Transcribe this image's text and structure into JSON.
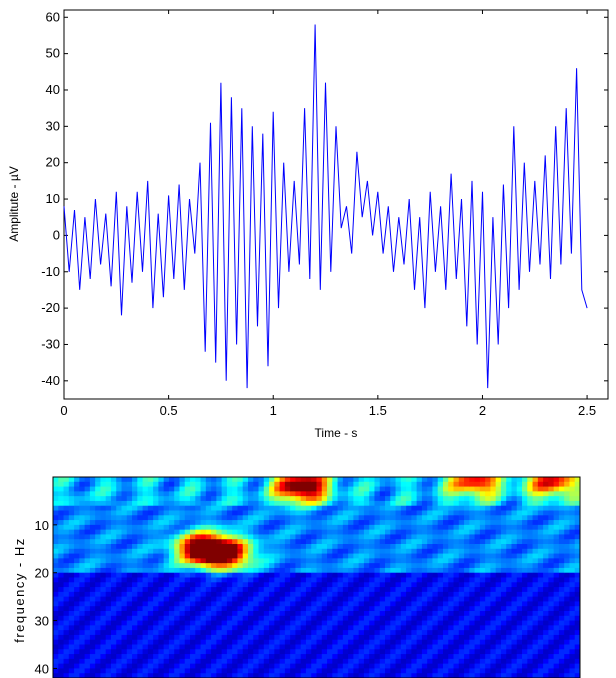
{
  "chart_data": [
    {
      "type": "line",
      "xlabel": "Time - s",
      "ylabel": "Amplitute - µV",
      "xlim": [
        0,
        2.6
      ],
      "ylim": [
        -45,
        62
      ],
      "xticks": [
        0,
        0.5,
        1,
        1.5,
        2,
        2.5
      ],
      "xtick_labels": [
        "0",
        "0.5",
        "1",
        "1.5",
        "2",
        "2.5"
      ],
      "yticks": [
        -40,
        -30,
        -20,
        -10,
        0,
        10,
        20,
        30,
        40,
        50,
        60
      ],
      "ytick_labels": [
        "-40",
        "-30",
        "-20",
        "-10",
        "0",
        "10",
        "20",
        "30",
        "40",
        "50",
        "60"
      ],
      "grid": false,
      "line_color": "#0000ff",
      "series": [
        {
          "x": [
            0,
            0.025,
            0.05,
            0.075,
            0.1,
            0.125,
            0.15,
            0.175,
            0.2,
            0.225,
            0.25,
            0.275,
            0.3,
            0.325,
            0.35,
            0.375,
            0.4,
            0.425,
            0.45,
            0.475,
            0.5,
            0.525,
            0.55,
            0.575,
            0.6,
            0.625,
            0.65,
            0.675,
            0.7,
            0.725,
            0.75,
            0.775,
            0.8,
            0.825,
            0.85,
            0.875,
            0.9,
            0.925,
            0.95,
            0.975,
            1,
            1.025,
            1.05,
            1.075,
            1.1,
            1.125,
            1.15,
            1.175,
            1.2,
            1.225,
            1.25,
            1.275,
            1.3,
            1.325,
            1.35,
            1.375,
            1.4,
            1.425,
            1.45,
            1.475,
            1.5,
            1.525,
            1.55,
            1.575,
            1.6,
            1.625,
            1.65,
            1.675,
            1.7,
            1.725,
            1.75,
            1.775,
            1.8,
            1.825,
            1.85,
            1.875,
            1.9,
            1.925,
            1.95,
            1.975,
            2,
            2.025,
            2.05,
            2.075,
            2.1,
            2.125,
            2.15,
            2.175,
            2.2,
            2.225,
            2.25,
            2.275,
            2.3,
            2.325,
            2.35,
            2.375,
            2.4,
            2.425,
            2.45,
            2.475,
            2.5
          ],
          "values": [
            8,
            -10,
            7,
            -15,
            5,
            -12,
            10,
            -8,
            6,
            -14,
            12,
            -22,
            8,
            -13,
            12,
            -10,
            15,
            -20,
            6,
            -17,
            11,
            -12,
            14,
            -15,
            10,
            -5,
            20,
            -32,
            31,
            -35,
            42,
            -40,
            38,
            -30,
            35,
            -42,
            30,
            -25,
            28,
            -36,
            34,
            -20,
            20,
            -10,
            15,
            -8,
            35,
            -12,
            58,
            -15,
            42,
            -10,
            30,
            2,
            8,
            -5,
            23,
            5,
            15,
            0,
            12,
            -5,
            8,
            -10,
            5,
            -8,
            10,
            -15,
            5,
            -20,
            12,
            -10,
            8,
            -15,
            17,
            -12,
            10,
            -25,
            15,
            -30,
            12,
            -42,
            5,
            -30,
            14,
            -20,
            30,
            -15,
            20,
            -10,
            15,
            -8,
            22,
            -12,
            30,
            -8,
            35,
            -5,
            46,
            -15,
            -20
          ]
        }
      ]
    },
    {
      "type": "heatmap",
      "ylabel": "frequency - Hz",
      "ylim": [
        0,
        42
      ],
      "yticks": [
        10,
        20,
        30,
        40
      ],
      "ytick_labels": [
        "10",
        "20",
        "30",
        "40"
      ],
      "colormap": "jet",
      "hotspots": [
        {
          "t": 0.71,
          "f": 15,
          "v": 0.9
        },
        {
          "t": 0.83,
          "f": 16,
          "v": 0.7
        },
        {
          "t": 1.18,
          "f": 2,
          "v": 0.85
        },
        {
          "t": 2.0,
          "f": 1,
          "v": 0.6
        },
        {
          "t": 2.37,
          "f": 1,
          "v": 0.6
        }
      ]
    }
  ]
}
